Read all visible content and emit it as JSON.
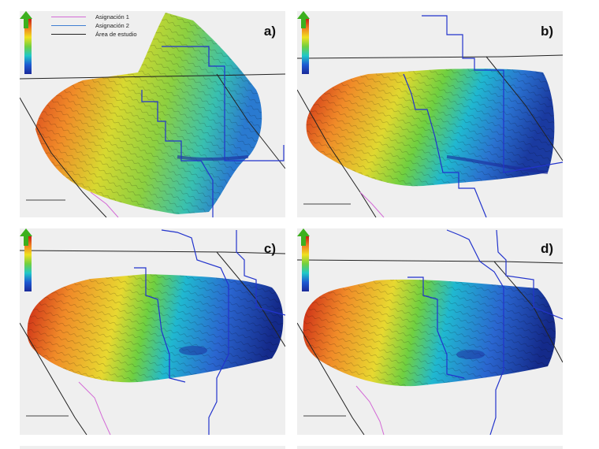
{
  "legend": {
    "items": [
      {
        "label": "Asignación 1",
        "color": "#d36ad6"
      },
      {
        "label": "Asignación 2",
        "color": "#3f7fd2"
      },
      {
        "label": "Área de estudio",
        "color": "#222222"
      }
    ]
  },
  "panels": [
    {
      "label": "a)"
    },
    {
      "label": "b)"
    },
    {
      "label": "c)"
    },
    {
      "label": "d)"
    }
  ],
  "colorbar_ticks": [
    "",
    "",
    "",
    "",
    "",
    "",
    ""
  ],
  "colors": {
    "high": "#c81e14",
    "mid_high": "#f08020",
    "mid": "#e8e020",
    "mid_low": "#70d040",
    "low": "#1e5ad2",
    "lowest": "#1a2a9a",
    "boundary_blue": "#2233cc",
    "boundary_pink": "#d36ad6",
    "boundary_black": "#222222",
    "north_arrow": "#3cb01e"
  }
}
